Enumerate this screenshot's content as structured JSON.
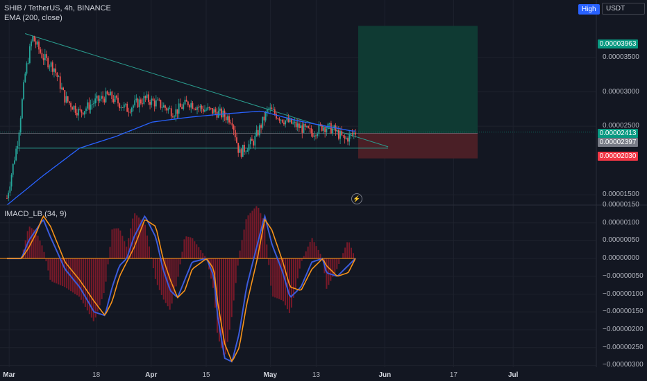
{
  "header": {
    "symbol_line": "SHIB / TetherUS, 4h, BINANCE",
    "indicator_line": "EMA (200, close)",
    "high_button": "High",
    "currency_button": "USDT",
    "macd_label": "IMACD_LB (34, 9)"
  },
  "price_tags": {
    "target": "0.00003963",
    "last": "0.00002413",
    "entry": "0.00002397",
    "stop": "0.00002030"
  },
  "colors": {
    "background": "#131722",
    "candle_up": "#26a69a",
    "candle_down": "#ef5350",
    "ema": "#2962ff",
    "macd_line": "#3b5bdb",
    "signal_line": "#f7931a",
    "histogram": "#8b1a2a",
    "profit_zone": "#0f3a33",
    "loss_zone": "#4a1f26"
  },
  "chart_data": [
    {
      "type": "line",
      "title": "SHIB / TetherUS, 4h, BINANCE",
      "y_axis_ticks": [
        "0.00003500",
        "0.00003000",
        "0.00002500",
        "0.00001500"
      ],
      "x_axis_ticks": [
        "Mar",
        "18",
        "Apr",
        "15",
        "May",
        "13",
        "Jun",
        "17",
        "Jul"
      ],
      "ylim": [
        1.35e-05,
        4.34e-05
      ],
      "series": [
        {
          "name": "EMA (200, close)",
          "x": [
            0,
            10,
            20,
            30,
            40,
            50,
            60,
            70,
            80,
            88,
            95
          ],
          "values": [
            1.35e-05,
            1.78e-05,
            2.18e-05,
            2.35e-05,
            2.56e-05,
            2.63e-05,
            2.68e-05,
            2.72e-05,
            2.58e-05,
            2.5e-05,
            2.43e-05
          ]
        }
      ],
      "price_path": {
        "x": [
          0,
          3,
          5,
          7,
          10,
          13,
          16,
          20,
          24,
          28,
          33,
          38,
          42,
          46,
          50,
          54,
          58,
          62,
          64,
          66,
          68,
          72,
          76,
          80,
          84,
          87,
          90,
          93,
          96
        ],
        "close": [
          1.45e-05,
          2.3e-05,
          3.25e-05,
          3.8e-05,
          3.5e-05,
          3.35e-05,
          2.9e-05,
          2.7e-05,
          2.85e-05,
          2.95e-05,
          2.75e-05,
          2.9e-05,
          2.82e-05,
          2.7e-05,
          2.85e-05,
          2.75e-05,
          2.7e-05,
          2.6e-05,
          2.1e-05,
          2.2e-05,
          2.28e-05,
          2.75e-05,
          2.6e-05,
          2.5e-05,
          2.4e-05,
          2.5e-05,
          2.45e-05,
          2.3e-05,
          2.41e-05
        ]
      },
      "trendlines": {
        "upper": {
          "from": [
            5,
            3.85e-05
          ],
          "to": [
            105,
            2.2e-05
          ]
        },
        "support": {
          "from": [
            3,
            2.18e-05
          ],
          "to": [
            105,
            2.18e-05
          ]
        }
      },
      "position": {
        "entry": 2.397e-05,
        "target": 3.963e-05,
        "stop": 2.03e-05
      },
      "grid": true
    },
    {
      "type": "area",
      "title": "IMACD_LB (34, 9)",
      "y_axis_ticks": [
        "0.00000150",
        "0.00000100",
        "0.00000050",
        "0.00000000",
        "−0.00000050",
        "−0.00000100",
        "−0.00000150",
        "−0.00000200",
        "−0.00000250",
        "−0.00000300"
      ],
      "ylim": [
        -3.05e-06,
        1.5e-06
      ],
      "series": [
        {
          "name": "macd",
          "x": [
            0,
            4,
            6,
            8,
            10,
            12,
            16,
            20,
            24,
            27,
            29,
            31,
            33,
            35,
            38,
            41,
            43,
            45,
            47,
            49,
            51,
            55,
            57,
            58,
            60,
            62,
            64,
            66,
            69,
            71,
            73,
            76,
            78,
            81,
            84,
            87,
            88,
            91,
            94,
            96
          ],
          "values": [
            0,
            0,
            5e-07,
            8e-07,
            1.1e-06,
            6e-07,
            -3e-07,
            -8e-07,
            -1.5e-06,
            -1.6e-06,
            -8e-07,
            -2e-07,
            0,
            6e-07,
            1.2e-06,
            6e-07,
            -3e-07,
            -9e-07,
            -1.1e-06,
            -6e-07,
            -1e-07,
            0,
            -5e-07,
            -1.6e-06,
            -2.8e-06,
            -2.9e-06,
            -2.1e-06,
            -8e-07,
            4e-07,
            1.2e-06,
            4e-07,
            -4e-07,
            -1.1e-06,
            -8e-07,
            -1e-07,
            0,
            -4e-07,
            -5e-07,
            -2e-07,
            0
          ]
        },
        {
          "name": "signal",
          "x": [
            0,
            4,
            6,
            8,
            10,
            12,
            16,
            20,
            24,
            27,
            29,
            31,
            33,
            35,
            38,
            41,
            43,
            45,
            47,
            49,
            51,
            55,
            57,
            58,
            60,
            62,
            64,
            66,
            69,
            71,
            73,
            76,
            78,
            81,
            84,
            87,
            88,
            91,
            94,
            96
          ],
          "values": [
            0,
            0,
            3e-07,
            7e-07,
            1.2e-06,
            9e-07,
            -1e-07,
            -6e-07,
            -1.2e-06,
            -1.6e-06,
            -1.2e-06,
            -5e-07,
            -1e-07,
            3e-07,
            1.1e-06,
            9e-07,
            0,
            -6e-07,
            -1.1e-06,
            -9e-07,
            -3e-07,
            0,
            -3e-07,
            -1.2e-06,
            -2.4e-06,
            -2.9e-06,
            -2.5e-06,
            -1.3e-06,
            0,
            1.1e-06,
            8e-07,
            -1e-07,
            -8e-07,
            -9e-07,
            -3e-07,
            0,
            -2e-07,
            -5e-07,
            -4e-07,
            0
          ]
        }
      ],
      "grid": true
    }
  ]
}
